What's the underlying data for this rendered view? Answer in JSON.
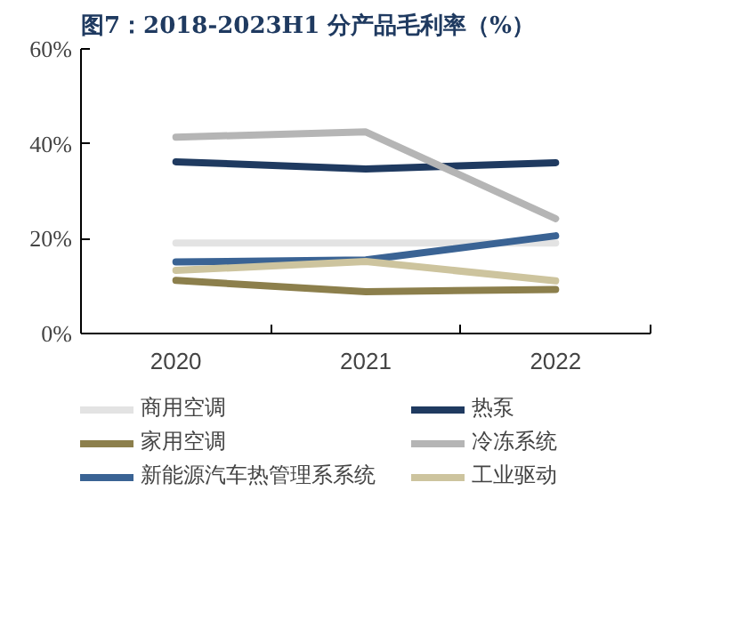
{
  "chart_data": {
    "type": "line",
    "title": "图7：2018-2023H1 分产品毛利率（%）",
    "categories": [
      "2020",
      "2021",
      "2022"
    ],
    "series": [
      {
        "name": "商用空调",
        "color": "#e3e3e3",
        "values": [
          19.1,
          19.1,
          19.1
        ]
      },
      {
        "name": "热泵",
        "color": "#1f3a60",
        "values": [
          36.2,
          34.7,
          36.0
        ]
      },
      {
        "name": "家用空调",
        "color": "#8c7f4c",
        "values": [
          11.2,
          8.8,
          9.3
        ]
      },
      {
        "name": "冷冻系统",
        "color": "#b5b5b5",
        "values": [
          41.4,
          42.5,
          24.2
        ]
      },
      {
        "name": "新能源汽车热管理系系统",
        "color": "#3a6394",
        "values": [
          15.1,
          15.5,
          20.6
        ]
      },
      {
        "name": "工业驱动",
        "color": "#cdc49e",
        "values": [
          13.3,
          15.2,
          11.1
        ]
      }
    ],
    "ylim": [
      0,
      60
    ],
    "yticks": [
      {
        "value": 0,
        "label": "0%"
      },
      {
        "value": 20,
        "label": "20%"
      },
      {
        "value": 40,
        "label": "40%"
      },
      {
        "value": 60,
        "label": "60%"
      }
    ],
    "grid": false,
    "legend": "bottom",
    "marker": "none",
    "line_style": "solid"
  }
}
